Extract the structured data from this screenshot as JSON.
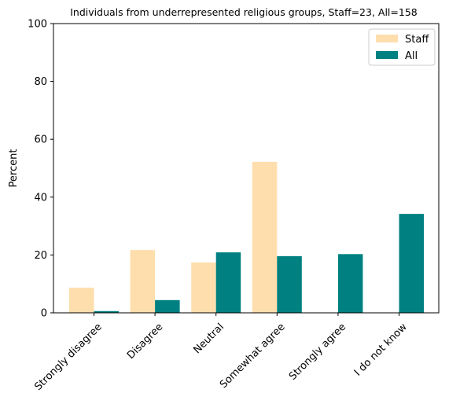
{
  "chart_data": {
    "type": "bar",
    "title": "Individuals from underrepresented religious groups, Staff=23, All=158",
    "xlabel": "",
    "ylabel": "Percent",
    "ylim": [
      0,
      100
    ],
    "yticks": [
      0,
      20,
      40,
      60,
      80,
      100
    ],
    "categories": [
      "Strongly disagree",
      "Disagree",
      "Neutral",
      "Somewhat agree",
      "Strongly agree",
      "I do not know"
    ],
    "series": [
      {
        "name": "Staff",
        "color": "#ffdead",
        "values": [
          8.7,
          21.7,
          17.4,
          52.2,
          0,
          0
        ]
      },
      {
        "name": "All",
        "color": "#008080",
        "values": [
          0.6,
          4.4,
          20.9,
          19.6,
          20.3,
          34.2
        ]
      }
    ],
    "legend": {
      "position": "top-right"
    },
    "grid": false
  }
}
